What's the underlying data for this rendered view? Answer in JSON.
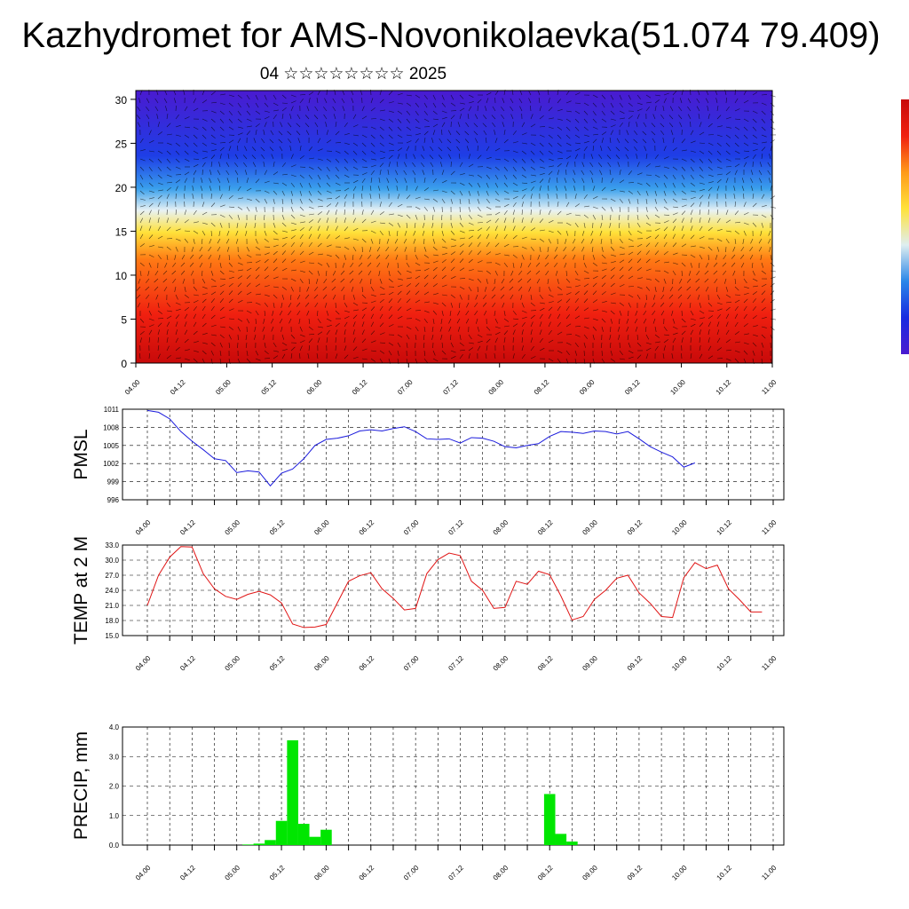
{
  "title": "Kazhydromet for AMS-Novonikolaevka(51.074 79.409)",
  "subtitle": "04 ☆☆☆☆☆☆☆☆ 2025",
  "colors": {
    "pmsl": "#1a1adc",
    "temp": "#e01414",
    "precip": "#00e600"
  },
  "chart_data": [
    {
      "type": "heatmap",
      "ylim": [
        0,
        30
      ],
      "yticks": [
        "0",
        "5",
        "10",
        "15",
        "20",
        "25",
        "30"
      ],
      "xticks": [
        "04.00",
        "04.12",
        "05.00",
        "05.12",
        "06.00",
        "06.12",
        "07.00",
        "07.12",
        "08.00",
        "08.12",
        "09.00",
        "09.12",
        "10.00",
        "10.12",
        "11.00"
      ],
      "colorscale": [
        "#4a1ad0",
        "#1a2ae0",
        "#2a86e8",
        "#dfeef0",
        "#ffe23a",
        "#ff9a1a",
        "#f02010",
        "#c80a0a"
      ],
      "overlay": "wind vectors"
    },
    {
      "type": "line",
      "ylabel": "PMSL",
      "ylim": [
        996,
        1011
      ],
      "yticks": [
        "996",
        "999",
        "1002",
        "1005",
        "1008",
        "1011"
      ],
      "xticks": [
        "04.00",
        "04.12",
        "05.00",
        "05.12",
        "06.00",
        "06.12",
        "07.00",
        "07.12",
        "08.00",
        "08.12",
        "09.00",
        "09.12",
        "10.00",
        "10.12",
        "11.00"
      ],
      "x_step_hours": 3,
      "series": [
        {
          "values": [
            1010.8,
            1010.5,
            1009.4,
            1007.3,
            1005.7,
            1004.3,
            1002.8,
            1002.5,
            1000.5,
            1000.8,
            1000.6,
            998.3,
            1000.4,
            1001.1,
            1002.8,
            1005.0,
            1006.0,
            1006.2,
            1006.6,
            1007.4,
            1007.6,
            1007.4,
            1007.8,
            1008.1,
            1007.3,
            1006.1,
            1006.0,
            1006.1,
            1005.4,
            1006.3,
            1006.2,
            1005.7,
            1004.8,
            1004.6,
            1005.0,
            1005.3,
            1006.5,
            1007.3,
            1007.2,
            1007.0,
            1007.4,
            1007.3,
            1006.9,
            1007.3,
            1006.1,
            1004.8,
            1003.9,
            1003.1,
            1001.4,
            1002.1
          ]
        }
      ]
    },
    {
      "type": "line",
      "ylabel": "TEMP at 2 M",
      "ylim": [
        15,
        33
      ],
      "yticks": [
        "15.0",
        "18.0",
        "21.0",
        "24.0",
        "27.0",
        "30.0",
        "33.0"
      ],
      "xticks": [
        "04.00",
        "04.12",
        "05.00",
        "05.12",
        "06.00",
        "06.12",
        "07.00",
        "07.12",
        "08.00",
        "08.12",
        "09.00",
        "09.12",
        "10.00",
        "10.12",
        "11.00"
      ],
      "x_step_hours": 3,
      "series": [
        {
          "values": [
            21.0,
            27.0,
            30.6,
            32.7,
            32.6,
            27.3,
            24.3,
            22.8,
            22.2,
            23.2,
            23.8,
            23.1,
            21.5,
            17.3,
            16.6,
            16.7,
            17.2,
            21.5,
            25.8,
            26.9,
            27.5,
            24.3,
            22.4,
            20.1,
            20.4,
            27.3,
            30.1,
            31.4,
            30.9,
            25.8,
            24.0,
            20.4,
            20.6,
            25.8,
            25.2,
            27.8,
            27.1,
            22.9,
            18.1,
            18.8,
            22.2,
            24.0,
            26.4,
            27.0,
            23.5,
            21.4,
            18.8,
            18.6,
            26.5,
            29.5,
            28.3,
            29.0,
            24.3,
            22.1,
            19.7,
            19.7
          ]
        }
      ]
    },
    {
      "type": "bar",
      "ylabel": "PRECIP, mm",
      "ylim": [
        0,
        4
      ],
      "yticks": [
        "0.0",
        "1.0",
        "2.0",
        "3.0",
        "4.0"
      ],
      "xticks": [
        "04.00",
        "04.12",
        "05.00",
        "05.12",
        "06.00",
        "06.12",
        "07.00",
        "07.12",
        "08.00",
        "08.12",
        "09.00",
        "09.12",
        "10.00",
        "10.12",
        "11.00"
      ],
      "x_step_hours": 3,
      "values": [
        0,
        0,
        0,
        0,
        0,
        0,
        0,
        0,
        0,
        0.02,
        0.05,
        0.17,
        0.82,
        3.55,
        0.72,
        0.28,
        0.52,
        0,
        0,
        0,
        0,
        0,
        0,
        0,
        0,
        0,
        0,
        0,
        0,
        0,
        0,
        0,
        0,
        0,
        0,
        0,
        1.73,
        0.38,
        0.12,
        0,
        0,
        0,
        0,
        0,
        0,
        0,
        0,
        0,
        0,
        0,
        0,
        0,
        0,
        0,
        0,
        0
      ]
    }
  ]
}
